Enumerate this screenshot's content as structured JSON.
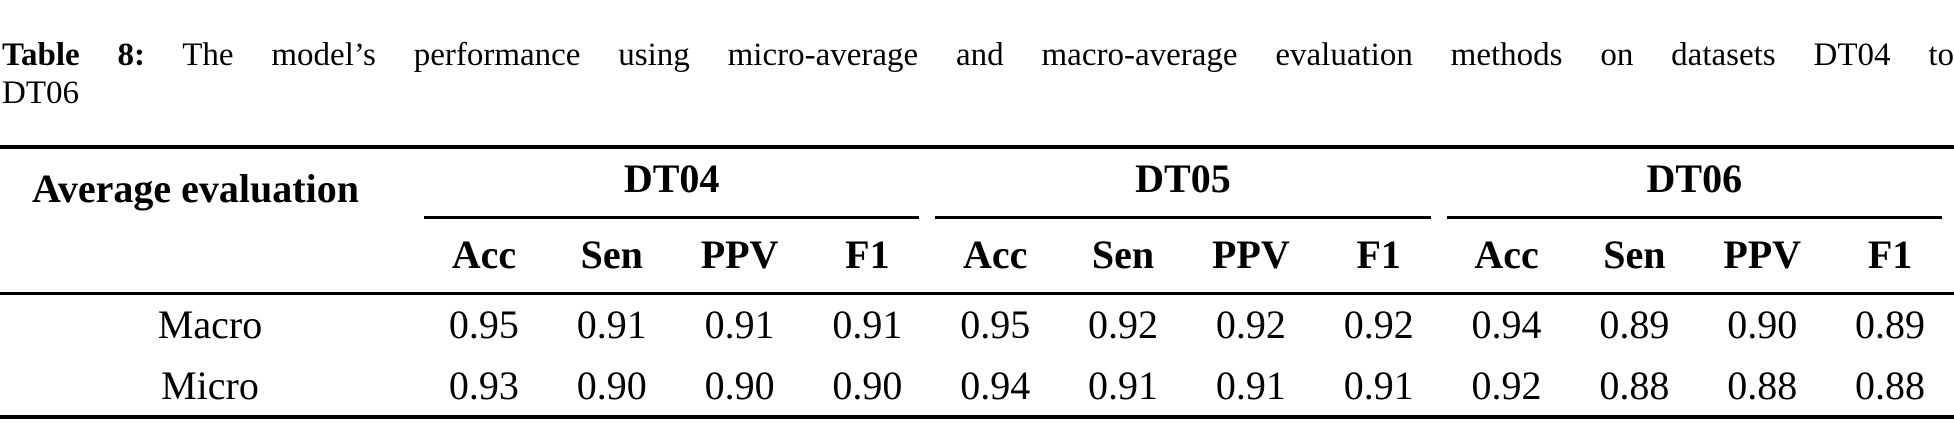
{
  "caption": {
    "label": "Table 8:",
    "body": "The model’s performance using micro-average and macro-average evaluation methods on datasets DT04 to DT06"
  },
  "table": {
    "row_header_title": "Average evaluation",
    "groups": [
      {
        "label": "DT04",
        "metrics": [
          "Acc",
          "Sen",
          "PPV",
          "F1"
        ]
      },
      {
        "label": "DT05",
        "metrics": [
          "Acc",
          "Sen",
          "PPV",
          "F1"
        ]
      },
      {
        "label": "DT06",
        "metrics": [
          "Acc",
          "Sen",
          "PPV",
          "F1"
        ]
      }
    ],
    "rows": [
      {
        "label": "Macro",
        "values": [
          "0.95",
          "0.91",
          "0.91",
          "0.91",
          "0.95",
          "0.92",
          "0.92",
          "0.92",
          "0.94",
          "0.89",
          "0.90",
          "0.89"
        ]
      },
      {
        "label": "Micro",
        "values": [
          "0.93",
          "0.90",
          "0.90",
          "0.90",
          "0.94",
          "0.91",
          "0.91",
          "0.91",
          "0.92",
          "0.88",
          "0.88",
          "0.88"
        ]
      }
    ]
  },
  "colors": {
    "text": "#000000",
    "background": "#ffffff",
    "rules": "#000000"
  }
}
